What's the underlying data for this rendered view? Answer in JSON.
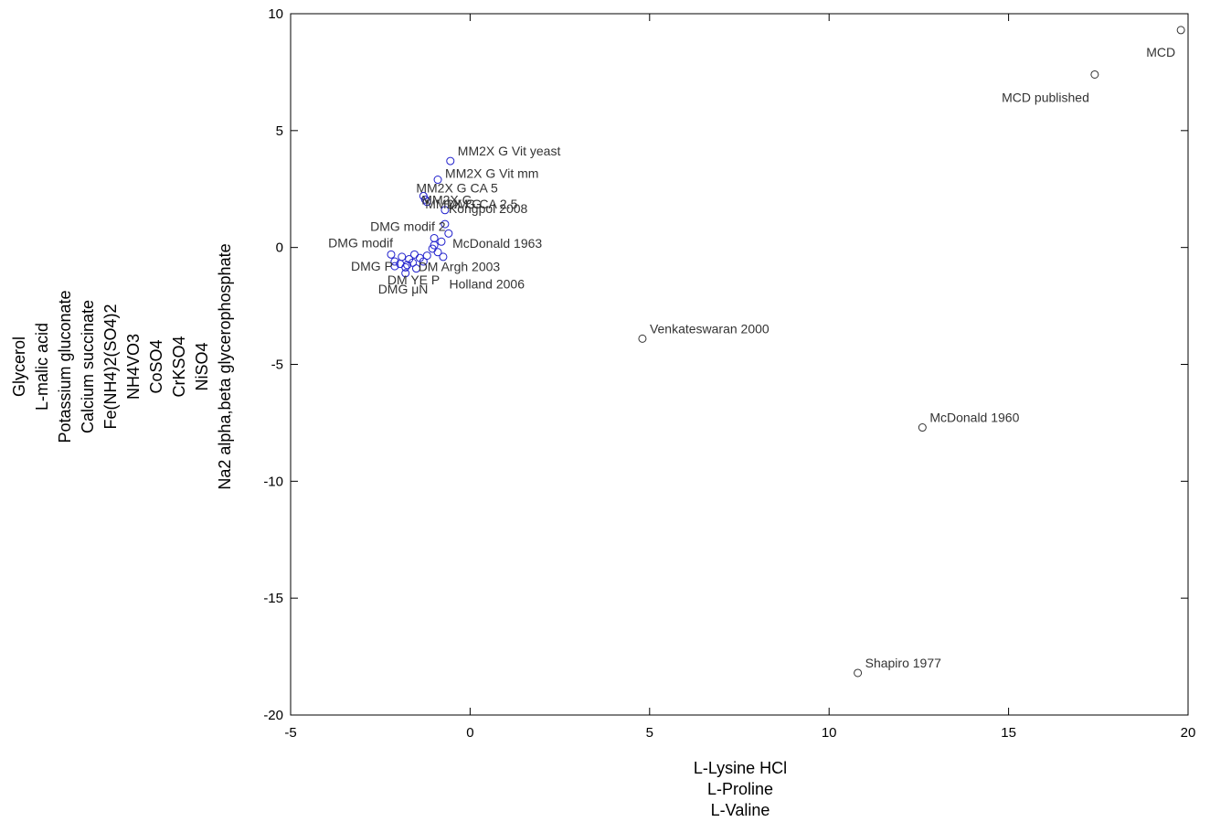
{
  "chart_data": {
    "type": "scatter",
    "title": "",
    "xlabel": [
      "L-Lysine HCl",
      "L-Proline",
      "L-Valine"
    ],
    "ylabel": [
      "Glycerol",
      "L-malic acid",
      "Potassium gluconate",
      "Calcium succinate",
      "Fe(NH4)2(SO4)2",
      "NH4VO3",
      "CoSO4",
      "CrKSO4",
      "NiSO4",
      "Na2 alpha,beta glycerophosphate"
    ],
    "xlim": [
      -5,
      20
    ],
    "ylim": [
      -20,
      10
    ],
    "xticks": [
      -5,
      0,
      5,
      10,
      15,
      20
    ],
    "yticks": [
      -20,
      -15,
      -10,
      -5,
      0,
      5,
      10
    ],
    "grid": false,
    "colors": {
      "black": "#333333",
      "blue": "#1f1fcc"
    },
    "points": [
      {
        "x": 19.8,
        "y": 9.3,
        "label": "MCD",
        "color": "black"
      },
      {
        "x": 17.4,
        "y": 7.4,
        "label": "MCD published",
        "color": "black"
      },
      {
        "x": 4.8,
        "y": -3.9,
        "label": "Venkateswaran 2000",
        "color": "black"
      },
      {
        "x": 12.6,
        "y": -7.7,
        "label": "McDonald 1960",
        "color": "black"
      },
      {
        "x": 10.8,
        "y": -18.2,
        "label": "Shapiro 1977",
        "color": "black"
      },
      {
        "x": -0.55,
        "y": 3.7,
        "label": "MM2X G Vit yeast",
        "color": "blue"
      },
      {
        "x": -0.9,
        "y": 2.9,
        "label": "MM2X G Vit mm",
        "color": "blue"
      },
      {
        "x": -1.3,
        "y": 2.2,
        "label": "MM2X G CA 5",
        "color": "blue"
      },
      {
        "x": -1.25,
        "y": 2.05,
        "label": "MM2X G",
        "color": "blue"
      },
      {
        "x": -1.2,
        "y": 1.95,
        "label": "MM2X G CA 2.5",
        "color": "blue"
      },
      {
        "x": -0.7,
        "y": 1.6,
        "label": "MM G",
        "color": "blue"
      },
      {
        "x": -0.7,
        "y": 1.0,
        "label": "Kongpol 2008",
        "color": "blue"
      },
      {
        "x": -1.0,
        "y": 0.4,
        "label": "DMG modif 2",
        "color": "blue"
      },
      {
        "x": -1.0,
        "y": 0.1,
        "label": "McDonald 1963",
        "color": "blue"
      },
      {
        "x": -2.2,
        "y": -0.3,
        "label": "DMG modif",
        "color": "blue"
      },
      {
        "x": -2.1,
        "y": -0.6,
        "label": "DMG P",
        "color": "blue"
      },
      {
        "x": -2.1,
        "y": -0.8,
        "label": "DM YE P",
        "color": "blue"
      },
      {
        "x": -1.8,
        "y": -0.85,
        "label": "DM Argh 2003",
        "color": "blue"
      },
      {
        "x": -1.8,
        "y": -1.1,
        "label": "DMG μN",
        "color": "blue"
      },
      {
        "x": -1.5,
        "y": -0.9,
        "label": "Holland 2006",
        "color": "blue"
      },
      {
        "x": -1.95,
        "y": -0.7,
        "label": "",
        "color": "blue"
      },
      {
        "x": -1.7,
        "y": -0.5,
        "label": "",
        "color": "blue"
      },
      {
        "x": -1.6,
        "y": -0.65,
        "label": "",
        "color": "blue"
      },
      {
        "x": -1.4,
        "y": -0.45,
        "label": "",
        "color": "blue"
      },
      {
        "x": -1.2,
        "y": -0.35,
        "label": "",
        "color": "blue"
      },
      {
        "x": -1.3,
        "y": -0.6,
        "label": "",
        "color": "blue"
      },
      {
        "x": -0.9,
        "y": -0.2,
        "label": "",
        "color": "blue"
      },
      {
        "x": -0.8,
        "y": 0.25,
        "label": "",
        "color": "blue"
      },
      {
        "x": -1.05,
        "y": -0.05,
        "label": "",
        "color": "blue"
      },
      {
        "x": -0.6,
        "y": 0.6,
        "label": "",
        "color": "blue"
      },
      {
        "x": -1.9,
        "y": -0.4,
        "label": "",
        "color": "blue"
      },
      {
        "x": -1.75,
        "y": -0.75,
        "label": "",
        "color": "blue"
      },
      {
        "x": -1.55,
        "y": -0.3,
        "label": "",
        "color": "blue"
      },
      {
        "x": -0.75,
        "y": -0.4,
        "label": "",
        "color": "blue"
      }
    ]
  }
}
